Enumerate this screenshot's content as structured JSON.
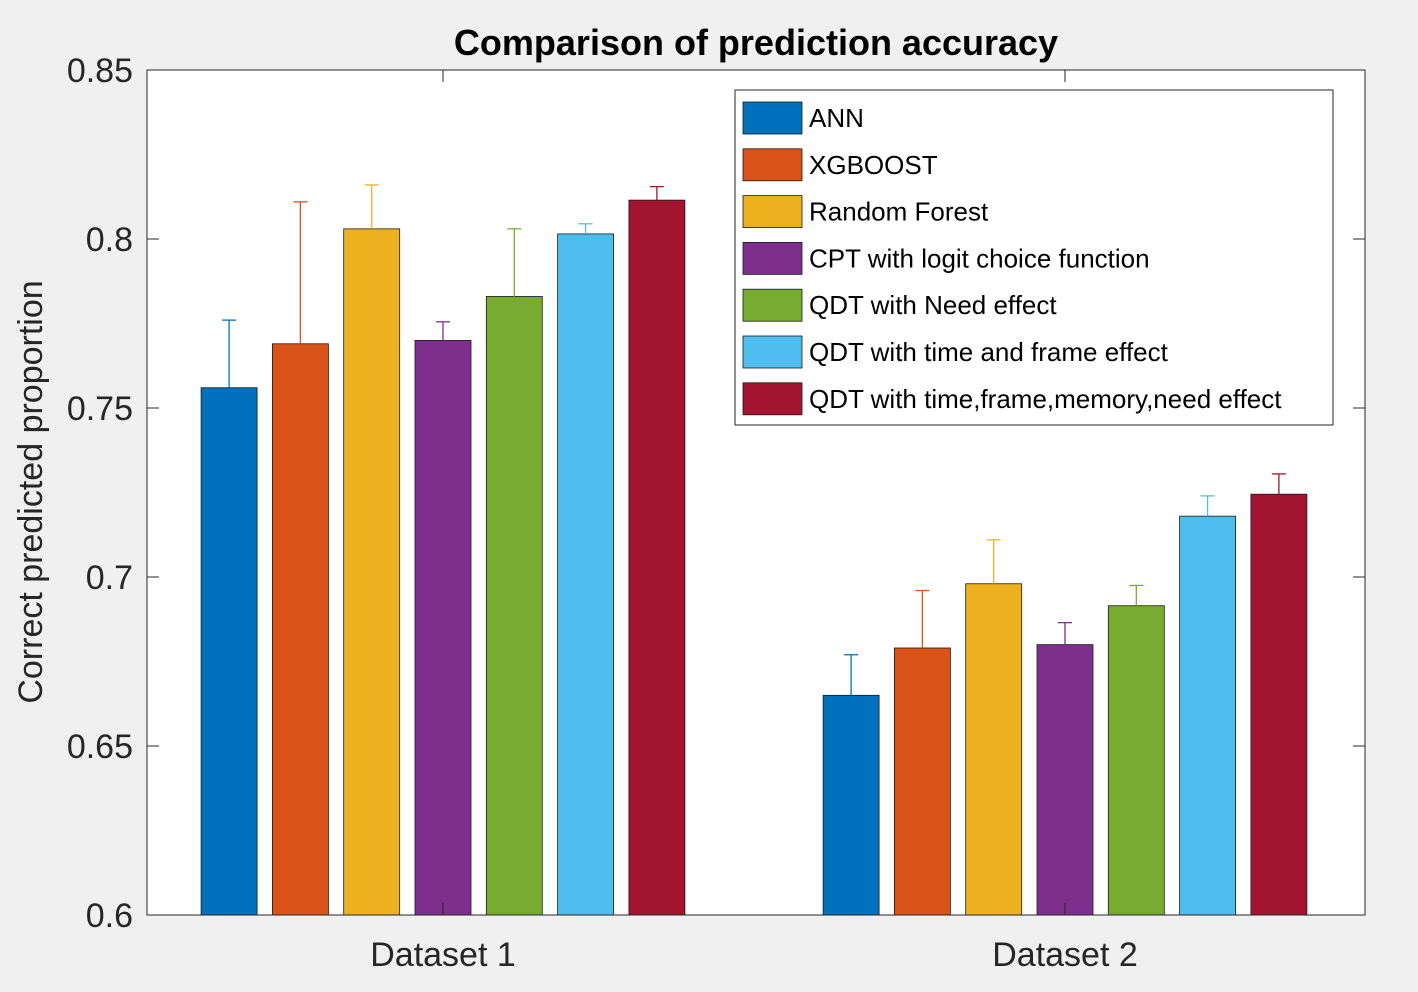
{
  "chart_data": {
    "type": "bar",
    "title": "Comparison of prediction accuracy",
    "xlabel": "",
    "ylabel": "Correct predicted proportion",
    "ylim": [
      0.6,
      0.85
    ],
    "yticks": [
      "0.6",
      "0.65",
      "0.7",
      "0.75",
      "0.8",
      "0.85"
    ],
    "categories": [
      "Dataset 1",
      "Dataset 2"
    ],
    "legend_position": "top-right",
    "series": [
      {
        "name": "ANN",
        "color": "#0072BD",
        "values": [
          0.756,
          0.665
        ],
        "error_upper": [
          0.776,
          0.677
        ]
      },
      {
        "name": "XGBOOST",
        "color": "#D95319",
        "values": [
          0.769,
          0.679
        ],
        "error_upper": [
          0.811,
          0.696
        ]
      },
      {
        "name": "Random Forest",
        "color": "#EDB120",
        "values": [
          0.803,
          0.698
        ],
        "error_upper": [
          0.816,
          0.711
        ]
      },
      {
        "name": "CPT with logit choice function",
        "color": "#7E2F8E",
        "values": [
          0.77,
          0.68
        ],
        "error_upper": [
          0.7755,
          0.6865
        ]
      },
      {
        "name": "QDT with Need effect",
        "color": "#77AC30",
        "values": [
          0.783,
          0.6915
        ],
        "error_upper": [
          0.803,
          0.6975
        ]
      },
      {
        "name": "QDT with time and frame effect",
        "color": "#4DBEEE",
        "values": [
          0.8015,
          0.718
        ],
        "error_upper": [
          0.8045,
          0.724
        ]
      },
      {
        "name": "QDT with time,frame,memory,need effect",
        "color": "#A2142F",
        "values": [
          0.8115,
          0.7245
        ],
        "error_upper": [
          0.8155,
          0.7305
        ]
      }
    ]
  }
}
